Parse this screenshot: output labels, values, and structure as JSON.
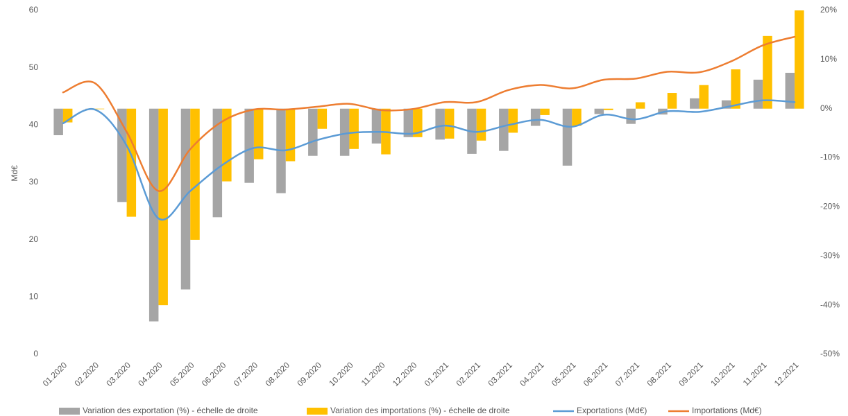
{
  "chart_data": {
    "type": "bar",
    "y_label": "Md€",
    "categories": [
      "01.2020",
      "02.2020",
      "03.2020",
      "04.2020",
      "05.2020",
      "06.2020",
      "07.2020",
      "08.2020",
      "09.2020",
      "10.2020",
      "11.2020",
      "12.2020",
      "01.2021",
      "02.2021",
      "03.2021",
      "04.2021",
      "05.2021",
      "06.2021",
      "07.2021",
      "08.2021",
      "09.2021",
      "10.2021",
      "11.2021",
      "12.2021"
    ],
    "series": [
      {
        "name": "Variation des exportation (%) - échelle de droite",
        "type": "bar",
        "axis": "y2",
        "color": "#a5a5a5",
        "values": [
          -5.4,
          -0.2,
          -19,
          -43.3,
          -36.8,
          -22.1,
          -15.1,
          -17.2,
          -9.6,
          -9.6,
          -7.1,
          -5.8,
          -6.3,
          -9.2,
          -8.6,
          -3.5,
          -11.6,
          -1.1,
          -3.1,
          -1.2,
          2.1,
          1.7,
          5.9,
          7.3
        ]
      },
      {
        "name": "Variation des importations (%) - échelle de droite",
        "type": "bar",
        "axis": "y2",
        "color": "#ffc000",
        "values": [
          -2.8,
          -0.1,
          -22,
          -40,
          -26.7,
          -14.8,
          -10.3,
          -10.7,
          -4.1,
          -8.2,
          -9.3,
          -5.8,
          -6.1,
          -6.5,
          -4.9,
          -1.3,
          -3.5,
          -0.3,
          1.3,
          3.2,
          4.8,
          8.0,
          14.8,
          20.0
        ]
      },
      {
        "name": "Exportations (Md€)",
        "type": "line",
        "color": "#5b9bd5",
        "values": [
          40.3,
          42.7,
          36.4,
          23.7,
          28.5,
          33.0,
          36.0,
          35.6,
          37.4,
          38.6,
          38.8,
          38.5,
          39.9,
          38.8,
          40.0,
          40.9,
          39.7,
          41.8,
          41.0,
          42.4,
          42.3,
          43.3,
          44.3,
          44.0
        ]
      },
      {
        "name": "Importations (Md€)",
        "type": "line",
        "color": "#ed7d31",
        "values": [
          45.7,
          47.3,
          38.8,
          28.5,
          35.8,
          40.6,
          42.7,
          42.7,
          43.2,
          43.7,
          42.6,
          42.8,
          44.0,
          44.0,
          46.1,
          47.0,
          46.4,
          47.9,
          48.1,
          49.3,
          49.2,
          51.1,
          53.9,
          55.4
        ]
      }
    ],
    "ylim": [
      0,
      60
    ],
    "yticks": [
      0,
      10,
      20,
      30,
      40,
      50,
      60
    ],
    "y2lim": [
      -50,
      20
    ],
    "y2ticks": [
      {
        "value": -50,
        "label": "-50%"
      },
      {
        "value": -40,
        "label": "-40%"
      },
      {
        "value": -30,
        "label": "-30%"
      },
      {
        "value": -20,
        "label": "-20%"
      },
      {
        "value": -10,
        "label": "-10%"
      },
      {
        "value": 0,
        "label": "0%"
      },
      {
        "value": 10,
        "label": "10%"
      },
      {
        "value": 20,
        "label": "20%"
      }
    ],
    "grid": false,
    "legend": "bottom"
  }
}
